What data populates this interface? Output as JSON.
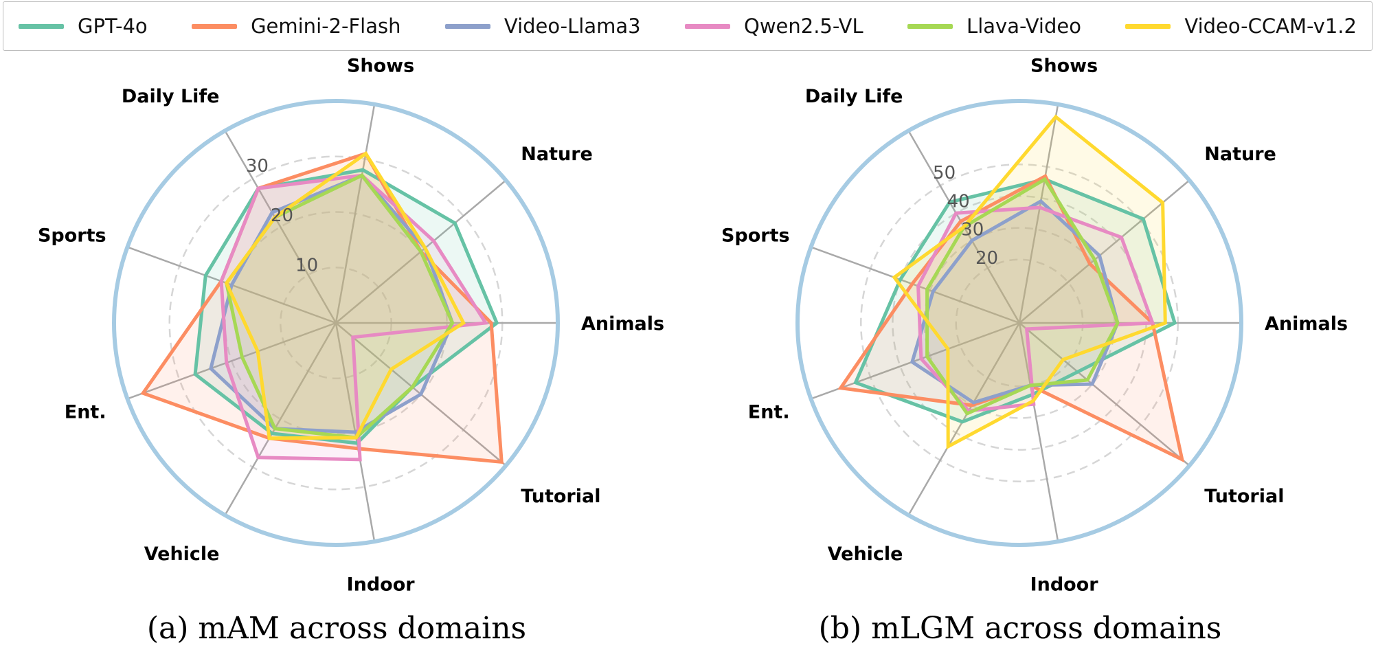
{
  "legend": {
    "items": [
      {
        "name": "GPT-4o",
        "color": "#66c2a5"
      },
      {
        "name": "Gemini-2-Flash",
        "color": "#fc8d62"
      },
      {
        "name": "Video-Llama3",
        "color": "#8da0cb"
      },
      {
        "name": "Qwen2.5-VL",
        "color": "#e78ac3"
      },
      {
        "name": "Llava-Video",
        "color": "#a6d854"
      },
      {
        "name": "Video-CCAM-v1.2",
        "color": "#ffd92f"
      }
    ]
  },
  "chart_data": [
    {
      "type": "radar",
      "caption": "(a) mAM across domains",
      "categories": [
        "Animals",
        "Nature",
        "Shows",
        "Daily Life",
        "Sports",
        "Ent.",
        "Vehicle",
        "Indoor",
        "Tutorial"
      ],
      "rmax": 40,
      "ticks": [
        10,
        20,
        30
      ],
      "outline_color": "#a6cbe3",
      "series": [
        {
          "name": "GPT-4o",
          "values": [
            29,
            28,
            28,
            28,
            25,
            27,
            23,
            22,
            18
          ]
        },
        {
          "name": "Gemini-2-Flash",
          "values": [
            28,
            20,
            31,
            28,
            22,
            37,
            24,
            23,
            39
          ]
        },
        {
          "name": "Video-Llama3",
          "values": [
            21,
            21,
            27,
            23,
            20,
            24,
            22,
            20,
            20
          ]
        },
        {
          "name": "Qwen2.5-VL",
          "values": [
            27,
            23,
            27,
            28,
            22,
            21,
            28,
            25,
            4
          ]
        },
        {
          "name": "Llava-Video",
          "values": [
            21,
            20,
            27,
            22,
            21,
            18,
            22,
            21,
            18
          ]
        },
        {
          "name": "Video-CCAM-v1.2",
          "values": [
            23,
            21,
            31,
            22,
            21,
            15,
            24,
            21,
            13
          ]
        }
      ]
    },
    {
      "type": "radar",
      "caption": "(b) mLGM across domains",
      "categories": [
        "Animals",
        "Nature",
        "Shows",
        "Daily Life",
        "Sports",
        "Ent.",
        "Vehicle",
        "Indoor",
        "Tutorial"
      ],
      "rmax": 70,
      "ticks": [
        20,
        30,
        40,
        50
      ],
      "outline_color": "#a6cbe3",
      "series": [
        {
          "name": "GPT-4o",
          "values": [
            49,
            51,
            46,
            44,
            40,
            55,
            36,
            23,
            24
          ]
        },
        {
          "name": "Gemini-2-Flash",
          "values": [
            42,
            29,
            47,
            37,
            36,
            60,
            30,
            20,
            67
          ]
        },
        {
          "name": "Video-Llama3",
          "values": [
            31,
            33,
            39,
            30,
            29,
            36,
            29,
            20,
            30
          ]
        },
        {
          "name": "Qwen2.5-VL",
          "values": [
            42,
            42,
            37,
            40,
            34,
            33,
            32,
            26,
            3
          ]
        },
        {
          "name": "Llava-Video",
          "values": [
            31,
            31,
            46,
            35,
            31,
            31,
            33,
            20,
            28
          ]
        },
        {
          "name": "Video-CCAM-v1.2",
          "values": [
            46,
            59,
            66,
            35,
            42,
            24,
            45,
            25,
            18
          ]
        }
      ]
    }
  ]
}
